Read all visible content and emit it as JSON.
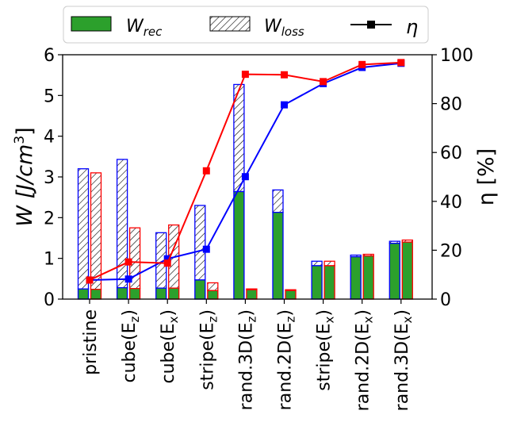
{
  "chart_data": {
    "type": "bar",
    "categories_plain": [
      "pristine",
      "cube(Ez)",
      "cube(Ex)",
      "stripe(Ez)",
      "rand.3D(Ez)",
      "rand.2D(Ez)",
      "stripe(Ex)",
      "rand.2D(Ex)",
      "rand.3D(Ex)"
    ],
    "categories": [
      {
        "base": "pristine",
        "sub": ""
      },
      {
        "base": "cube(E",
        "sub": "z",
        "close": ")"
      },
      {
        "base": "cube(E",
        "sub": "x",
        "close": ")"
      },
      {
        "base": "stripe(E",
        "sub": "z",
        "close": ")"
      },
      {
        "base": "rand.3D(E",
        "sub": "z",
        "close": ")"
      },
      {
        "base": "rand.2D(E",
        "sub": "z",
        "close": ")"
      },
      {
        "base": "stripe(E",
        "sub": "x",
        "close": ")"
      },
      {
        "base": "rand.2D(E",
        "sub": "x",
        "close": ")"
      },
      {
        "base": "rand.3D(E",
        "sub": "x",
        "close": ")"
      }
    ],
    "left_axis": {
      "label_main": "W [J/cm",
      "label_sup": "3",
      "label_close": "]",
      "ylim": [
        0,
        6
      ],
      "ticks": [
        "0",
        "1",
        "2",
        "3",
        "4",
        "5",
        "6"
      ]
    },
    "right_axis": {
      "label": "η [%]",
      "ylim": [
        0,
        100
      ],
      "ticks": [
        "0",
        "20",
        "40",
        "60",
        "80",
        "100"
      ]
    },
    "series": [
      {
        "name": "blue",
        "color": "#0000ff",
        "W_total": [
          3.2,
          3.43,
          1.63,
          2.3,
          5.27,
          2.68,
          0.93,
          1.08,
          1.42
        ],
        "W_rec": [
          0.25,
          0.28,
          0.27,
          0.47,
          2.64,
          2.13,
          0.82,
          1.04,
          1.37
        ],
        "eta": [
          7.8,
          8.2,
          16.5,
          20.4,
          50.1,
          79.5,
          88.2,
          94.8,
          96.5
        ]
      },
      {
        "name": "red",
        "color": "#ff0000",
        "W_total": [
          3.1,
          1.75,
          1.82,
          0.4,
          0.25,
          0.23,
          0.93,
          1.1,
          1.45
        ],
        "W_rec": [
          0.24,
          0.26,
          0.27,
          0.21,
          0.23,
          0.21,
          0.82,
          1.06,
          1.4
        ],
        "eta": [
          7.8,
          15.2,
          14.7,
          52.5,
          92.0,
          91.8,
          89.0,
          96.0,
          96.8
        ]
      }
    ],
    "bar_fill_rec": "#2ca02c",
    "legend": {
      "position": "top",
      "items": [
        {
          "main": "W",
          "sub": "rec"
        },
        {
          "main": "W",
          "sub": "loss"
        },
        {
          "main": "η",
          "sub": ""
        }
      ]
    }
  }
}
